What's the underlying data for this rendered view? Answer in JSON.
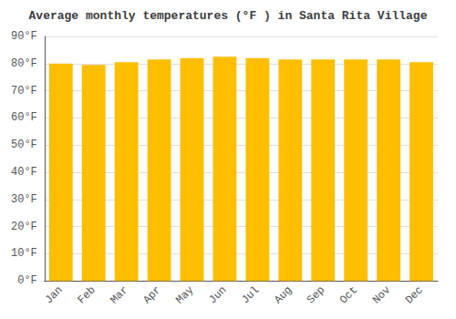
{
  "chart_data": {
    "type": "bar",
    "title": "Average monthly temperatures (°F ) in Santa Rita Village",
    "categories": [
      "Jan",
      "Feb",
      "Mar",
      "Apr",
      "May",
      "Jun",
      "Jul",
      "Aug",
      "Sep",
      "Oct",
      "Nov",
      "Dec"
    ],
    "values": [
      80,
      79.5,
      80.5,
      81.5,
      82,
      82.5,
      82,
      81.5,
      81.5,
      81.5,
      81.5,
      80.5
    ],
    "color": "#FFBE00",
    "ylim": [
      0,
      90
    ],
    "yticks": [
      {
        "value": 0,
        "label": "0°F"
      },
      {
        "value": 10,
        "label": "10°F"
      },
      {
        "value": 20,
        "label": "20°F"
      },
      {
        "value": 30,
        "label": "30°F"
      },
      {
        "value": 40,
        "label": "40°F"
      },
      {
        "value": 50,
        "label": "50°F"
      },
      {
        "value": 60,
        "label": "60°F"
      },
      {
        "value": 70,
        "label": "70°F"
      },
      {
        "value": 80,
        "label": "80°F"
      },
      {
        "value": 90,
        "label": "90°F"
      }
    ],
    "grid": true
  }
}
